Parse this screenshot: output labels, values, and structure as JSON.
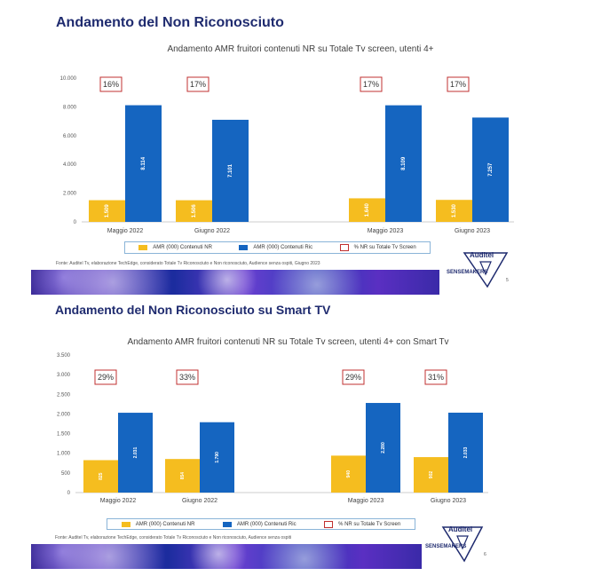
{
  "slides": [
    {
      "title": "Andamento del Non Riconosciuto",
      "source": "Fonte: Auditel Tv, elaborazione TechEdge, considerato Totale Tv Riconosciuto e Non riconosciuto, Audience senza ospiti, Giugno 2023",
      "page_number": "5",
      "logo_top": "Auditel",
      "logo_bottom": "SENSEMAKERS"
    },
    {
      "title": "Andamento del Non Riconosciuto su Smart TV",
      "source": "Fonte: Auditel Tv, elaborazione TechEdge, considerato Totale Tv Riconosciuto e Non riconosciuto, Audience senza ospiti",
      "page_number": "6",
      "logo_top": "Auditel",
      "logo_bottom": "SENSEMAKERS"
    }
  ],
  "colors": {
    "nr": "#f5bd1f",
    "ric": "#1565c0",
    "pct_border": "#c03030",
    "title": "#1f2b6f"
  },
  "chart_data": [
    {
      "type": "bar",
      "title": "Andamento AMR fruitori contenuti NR su Totale Tv screen, utenti 4+",
      "categories": [
        "Maggio 2022",
        "Giugno 2022",
        "Maggio 2023",
        "Giugno 2023"
      ],
      "series": [
        {
          "name": "AMR (000) Contenuti NR",
          "values": [
            1509,
            1506,
            1640,
            1530
          ],
          "labels": [
            "1.509",
            "1.506",
            "1.640",
            "1.530"
          ]
        },
        {
          "name": "AMR (000) Contenuti Ric",
          "values": [
            8114,
            7101,
            8109,
            7257
          ],
          "labels": [
            "8.114",
            "7.101",
            "8.109",
            "7.257"
          ]
        }
      ],
      "pct_series_name": "% NR su Totale Tv Screen",
      "pct_labels": [
        "16%",
        "17%",
        "17%",
        "17%"
      ],
      "ylim": [
        0,
        10000
      ],
      "yticks": [
        0,
        2000,
        4000,
        6000,
        8000,
        10000
      ],
      "ytick_labels": [
        "0",
        "2.000",
        "4.000",
        "6.000",
        "8.000",
        "10.000"
      ],
      "legend": "bottom",
      "grid": false
    },
    {
      "type": "bar",
      "title": "Andamento AMR fruitori contenuti NR su Totale Tv screen, utenti 4+ con Smart Tv",
      "categories": [
        "Maggio 2022",
        "Giugno 2022",
        "Maggio 2023",
        "Giugno 2023"
      ],
      "series": [
        {
          "name": "AMR (000) Contenuti NR",
          "values": [
            825,
            854,
            940,
            902
          ],
          "labels": [
            "825",
            "854",
            "940",
            "902"
          ]
        },
        {
          "name": "AMR (000) Contenuti Ric",
          "values": [
            2031,
            1790,
            2280,
            2033
          ],
          "labels": [
            "2.031",
            "1.790",
            "2.280",
            "2.033"
          ]
        }
      ],
      "pct_series_name": "% NR su Totale Tv Screen",
      "pct_labels": [
        "29%",
        "33%",
        "29%",
        "31%"
      ],
      "ylim": [
        0,
        3500
      ],
      "yticks": [
        0,
        500,
        1000,
        1500,
        2000,
        2500,
        3000,
        3500
      ],
      "ytick_labels": [
        "0",
        "500",
        "1.000",
        "1.500",
        "2.000",
        "2.500",
        "3.000",
        "3.500"
      ],
      "legend": "bottom",
      "grid": false
    }
  ]
}
